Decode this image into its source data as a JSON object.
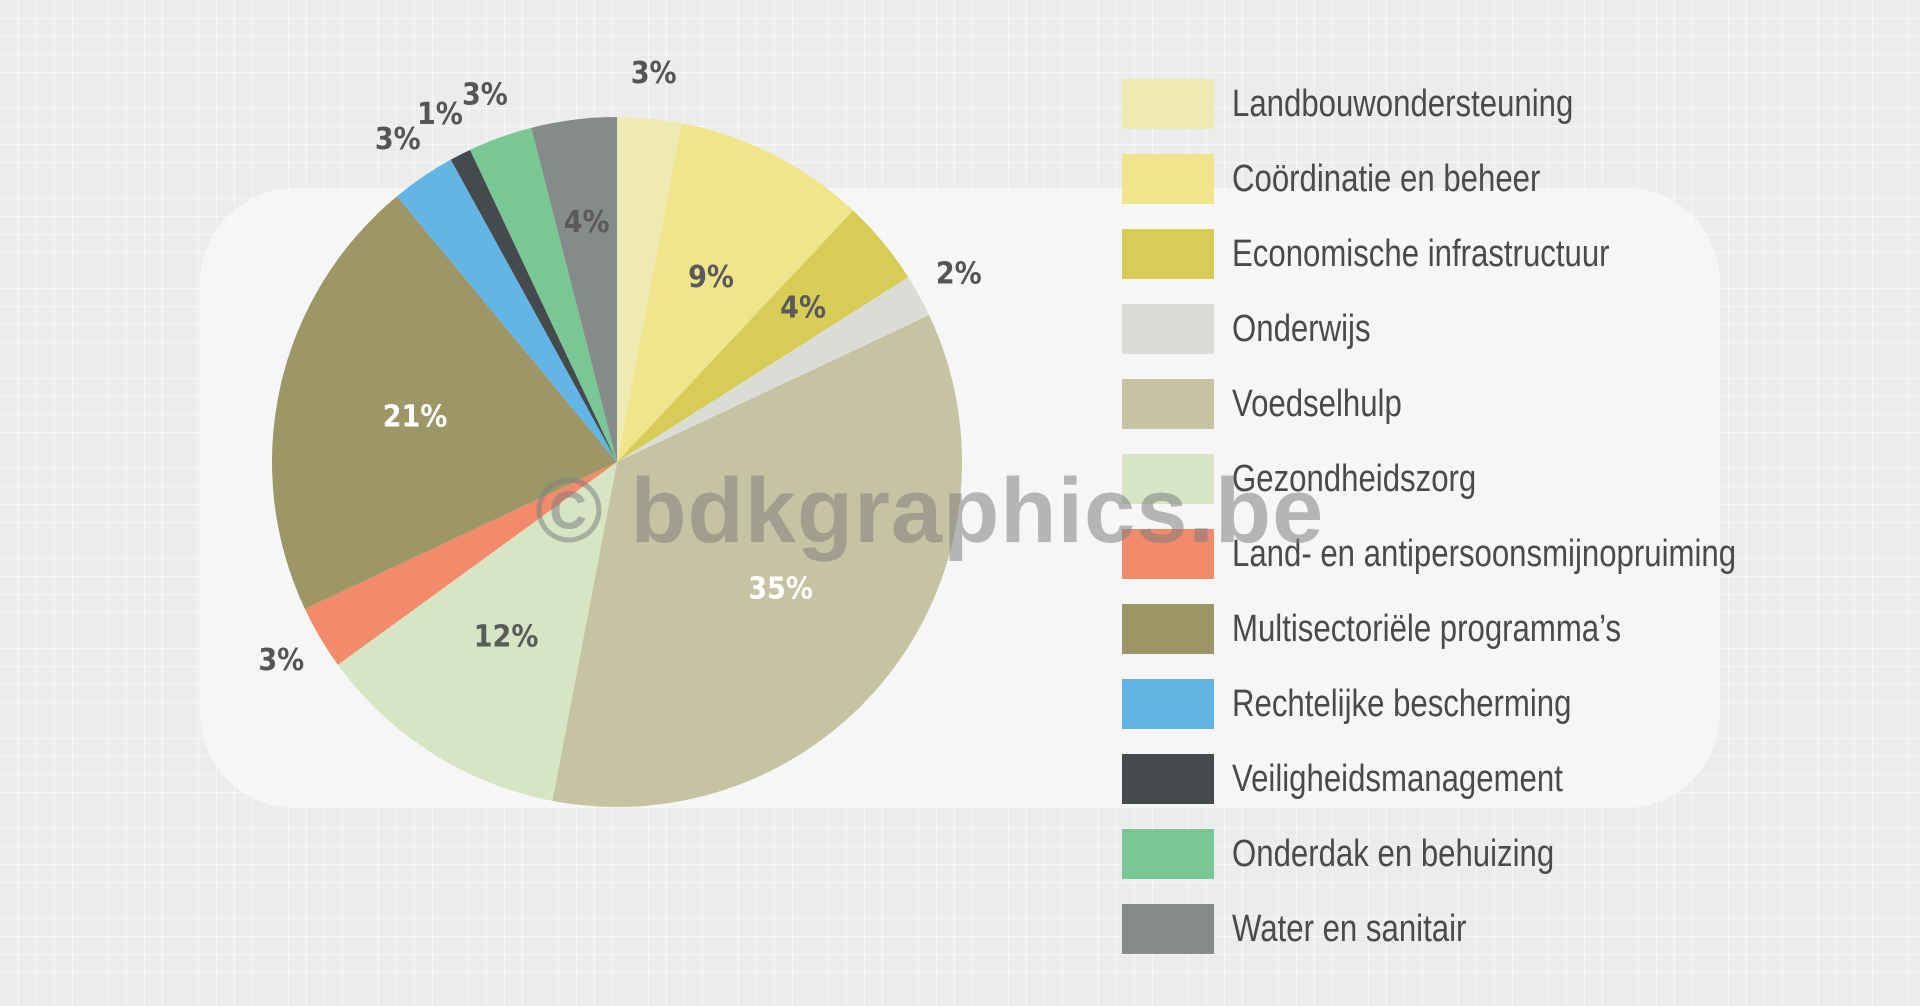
{
  "chart_data": {
    "type": "pie",
    "start_angle_deg": 0,
    "direction": "clockwise",
    "legend_position": "right",
    "slices": [
      {
        "label": "Landbouwondersteuning",
        "value": 3,
        "value_label": "3%",
        "color": "#efeab4",
        "label_placement": "outside"
      },
      {
        "label": "Coördinatie en beheer",
        "value": 9,
        "value_label": "9%",
        "color": "#f0e48c",
        "label_placement": "inside"
      },
      {
        "label": "Economische infrastructuur",
        "value": 4,
        "value_label": "4%",
        "color": "#d6cc56",
        "label_placement": "inside"
      },
      {
        "label": "Onderwijs",
        "value": 2,
        "value_label": "2%",
        "color": "#dcdcd6",
        "label_placement": "outside"
      },
      {
        "label": "Voedselhulp",
        "value": 35,
        "value_label": "35%",
        "color": "#c6c3a3",
        "label_placement": "inside"
      },
      {
        "label": "Gezondheidszorg",
        "value": 12,
        "value_label": "12%",
        "color": "#d6e6c5",
        "label_placement": "inside"
      },
      {
        "label": "Land- en antipersoonsmijnopruiming",
        "value": 3,
        "value_label": "3%",
        "color": "#f28a6c",
        "label_placement": "outside"
      },
      {
        "label": "Multisectoriële programma’s",
        "value": 21,
        "value_label": "21%",
        "color": "#9d9767",
        "label_placement": "inside"
      },
      {
        "label": "Rechtelijke bescherming",
        "value": 3,
        "value_label": "3%",
        "color": "#62b5e5",
        "label_placement": "outside"
      },
      {
        "label": "Veiligheidsmanagement",
        "value": 1,
        "value_label": "1%",
        "color": "#454b4d",
        "label_placement": "outside"
      },
      {
        "label": "Onderdak en behuizing",
        "value": 3,
        "value_label": "3%",
        "color": "#79c794",
        "label_placement": "outside"
      },
      {
        "label": "Water en sanitair",
        "value": 4,
        "value_label": "4%",
        "color": "#868a8a",
        "label_placement": "inside"
      }
    ]
  },
  "watermark": "© bdkgraphics.be"
}
